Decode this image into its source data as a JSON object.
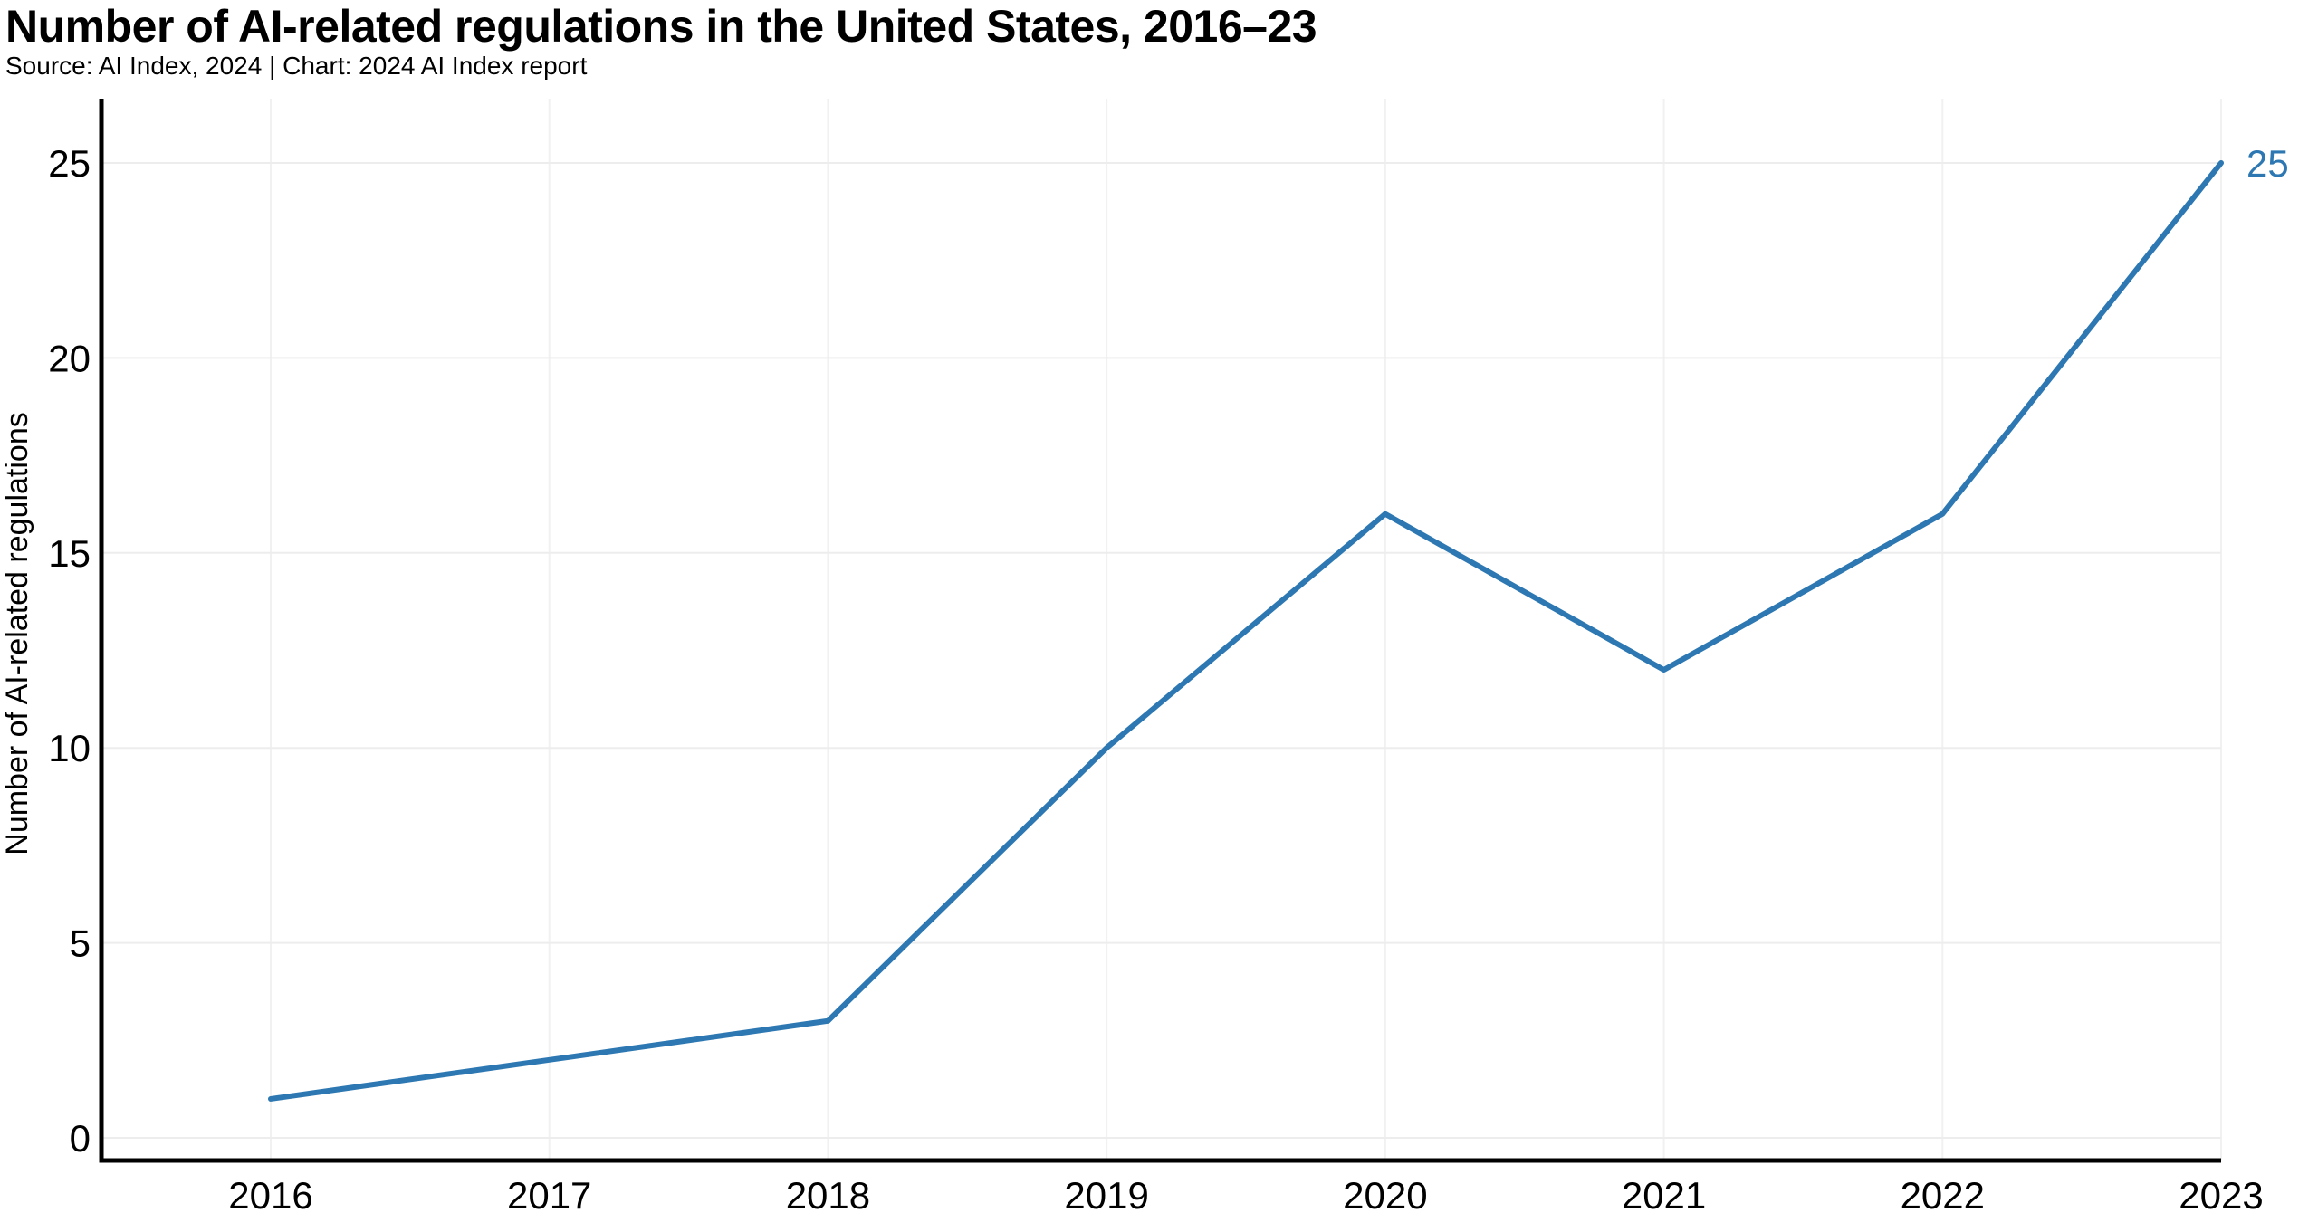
{
  "header": {
    "title": "Number of AI-related regulations in the United States, 2016–23",
    "subtitle": "Source: AI Index, 2024 | Chart: 2024 AI Index report"
  },
  "chart_data": {
    "type": "line",
    "title": "Number of AI-related regulations in the United States, 2016–23",
    "source_note": "Source: AI Index, 2024 | Chart: 2024 AI Index report",
    "x": [
      2016,
      2017,
      2018,
      2019,
      2020,
      2021,
      2022,
      2023
    ],
    "series": [
      {
        "name": "Number of AI-related regulations",
        "values": [
          1,
          2,
          3,
          10,
          16,
          12,
          16,
          25
        ]
      }
    ],
    "end_label": "25",
    "xlabel": "",
    "ylabel": "Number of AI-related regulations",
    "yticks": [
      0,
      5,
      10,
      15,
      20,
      25
    ],
    "ylim": [
      0,
      25
    ],
    "grid": true,
    "legend": "none",
    "colors": {
      "line": "#2d78b2",
      "end_label": "#2d78b2",
      "grid_horizontal": "#ededed",
      "grid_vertical": "#f1f1f1",
      "axis": "#000000",
      "text": "#000000",
      "background": "#ffffff"
    }
  }
}
